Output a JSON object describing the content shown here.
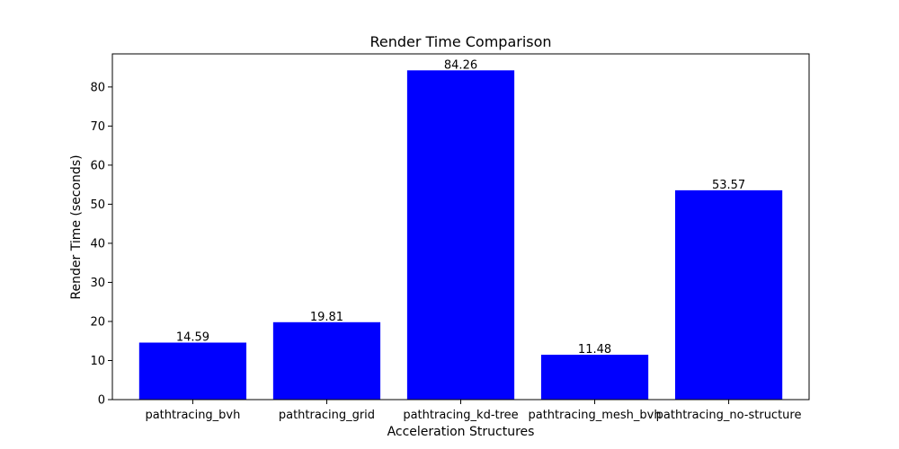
{
  "chart_data": {
    "type": "bar",
    "title": "Render Time Comparison",
    "xlabel": "Acceleration Structures",
    "ylabel": "Render Time (seconds)",
    "categories": [
      "pathtracing_bvh",
      "pathtracing_grid",
      "pathtracing_kd-tree",
      "pathtracing_mesh_bvh",
      "pathtracing_no-structure"
    ],
    "values": [
      14.59,
      19.81,
      84.26,
      11.48,
      53.57
    ],
    "value_labels": [
      "14.59",
      "19.81",
      "84.26",
      "11.48",
      "53.57"
    ],
    "ylim": [
      0,
      88.47
    ],
    "yticks": [
      0,
      10,
      20,
      30,
      40,
      50,
      60,
      70,
      80
    ],
    "bar_color": "#0000ff",
    "grid": false
  }
}
